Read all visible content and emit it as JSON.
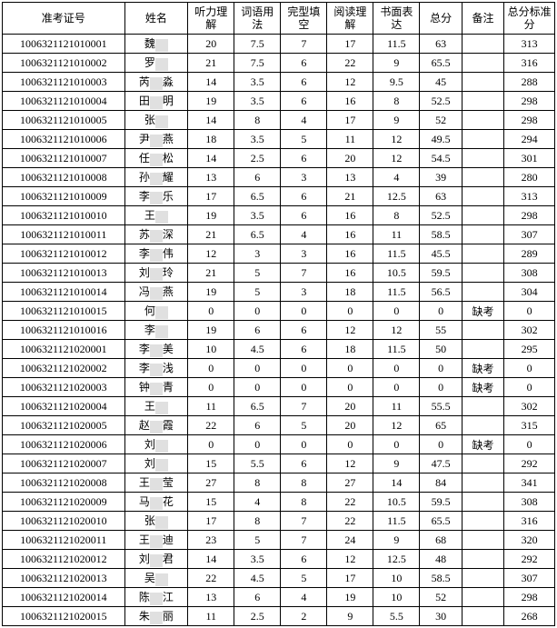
{
  "headers": {
    "id": "准考证号",
    "name": "姓名",
    "s1": "听力理解",
    "s2": "词语用法",
    "s3": "完型填空",
    "s4": "阅读理解",
    "s5": "书面表达",
    "total": "总分",
    "note": "备注",
    "std": "总分标准分"
  },
  "rows": [
    {
      "id": "1006321121010001",
      "surname": "魏",
      "hidden": 1,
      "s1": "20",
      "s2": "7.5",
      "s3": "7",
      "s4": "17",
      "s5": "11.5",
      "total": "63",
      "note": "",
      "std": "313"
    },
    {
      "id": "1006321121010002",
      "surname": "罗",
      "hidden": 1,
      "s1": "21",
      "s2": "7.5",
      "s3": "6",
      "s4": "22",
      "s5": "9",
      "total": "65.5",
      "note": "",
      "std": "316"
    },
    {
      "id": "1006321121010003",
      "surname": "芮",
      "tail": "淼",
      "hidden": 1,
      "s1": "14",
      "s2": "3.5",
      "s3": "6",
      "s4": "12",
      "s5": "9.5",
      "total": "45",
      "note": "",
      "std": "288"
    },
    {
      "id": "1006321121010004",
      "surname": "田",
      "tail": "明",
      "hidden": 1,
      "s1": "19",
      "s2": "3.5",
      "s3": "6",
      "s4": "16",
      "s5": "8",
      "total": "52.5",
      "note": "",
      "std": "298"
    },
    {
      "id": "1006321121010005",
      "surname": "张",
      "hidden": 1,
      "s1": "14",
      "s2": "8",
      "s3": "4",
      "s4": "17",
      "s5": "9",
      "total": "52",
      "note": "",
      "std": "298"
    },
    {
      "id": "1006321121010006",
      "surname": "尹",
      "tail": "燕",
      "hidden": 1,
      "s1": "18",
      "s2": "3.5",
      "s3": "5",
      "s4": "11",
      "s5": "12",
      "total": "49.5",
      "note": "",
      "std": "294"
    },
    {
      "id": "1006321121010007",
      "surname": "任",
      "tail": "松",
      "hidden": 1,
      "s1": "14",
      "s2": "2.5",
      "s3": "6",
      "s4": "20",
      "s5": "12",
      "total": "54.5",
      "note": "",
      "std": "301"
    },
    {
      "id": "1006321121010008",
      "surname": "孙",
      "tail": "耀",
      "hidden": 1,
      "s1": "13",
      "s2": "6",
      "s3": "3",
      "s4": "13",
      "s5": "4",
      "total": "39",
      "note": "",
      "std": "280"
    },
    {
      "id": "1006321121010009",
      "surname": "李",
      "tail": "乐",
      "hidden": 1,
      "s1": "17",
      "s2": "6.5",
      "s3": "6",
      "s4": "21",
      "s5": "12.5",
      "total": "63",
      "note": "",
      "std": "313"
    },
    {
      "id": "1006321121010010",
      "surname": "王",
      "hidden": 1,
      "s1": "19",
      "s2": "3.5",
      "s3": "6",
      "s4": "16",
      "s5": "8",
      "total": "52.5",
      "note": "",
      "std": "298"
    },
    {
      "id": "1006321121010011",
      "surname": "苏",
      "tail": "深",
      "hidden": 1,
      "s1": "21",
      "s2": "6.5",
      "s3": "4",
      "s4": "16",
      "s5": "11",
      "total": "58.5",
      "note": "",
      "std": "307"
    },
    {
      "id": "1006321121010012",
      "surname": "李",
      "tail": "伟",
      "hidden": 1,
      "s1": "12",
      "s2": "3",
      "s3": "3",
      "s4": "16",
      "s5": "11.5",
      "total": "45.5",
      "note": "",
      "std": "289"
    },
    {
      "id": "1006321121010013",
      "surname": "刘",
      "tail": "玲",
      "hidden": 1,
      "s1": "21",
      "s2": "5",
      "s3": "7",
      "s4": "16",
      "s5": "10.5",
      "total": "59.5",
      "note": "",
      "std": "308"
    },
    {
      "id": "1006321121010014",
      "surname": "冯",
      "tail": "燕",
      "hidden": 1,
      "s1": "19",
      "s2": "5",
      "s3": "3",
      "s4": "18",
      "s5": "11.5",
      "total": "56.5",
      "note": "",
      "std": "304"
    },
    {
      "id": "1006321121010015",
      "surname": "何",
      "hidden": 1,
      "s1": "0",
      "s2": "0",
      "s3": "0",
      "s4": "0",
      "s5": "0",
      "total": "0",
      "note": "缺考",
      "std": "0"
    },
    {
      "id": "1006321121010016",
      "surname": "李",
      "hidden": 1,
      "s1": "19",
      "s2": "6",
      "s3": "6",
      "s4": "12",
      "s5": "12",
      "total": "55",
      "note": "",
      "std": "302"
    },
    {
      "id": "1006321121020001",
      "surname": "李",
      "tail": "美",
      "hidden": 1,
      "s1": "10",
      "s2": "4.5",
      "s3": "6",
      "s4": "18",
      "s5": "11.5",
      "total": "50",
      "note": "",
      "std": "295"
    },
    {
      "id": "1006321121020002",
      "surname": "李",
      "tail": "浅",
      "hidden": 1,
      "s1": "0",
      "s2": "0",
      "s3": "0",
      "s4": "0",
      "s5": "0",
      "total": "0",
      "note": "缺考",
      "std": "0"
    },
    {
      "id": "1006321121020003",
      "surname": "钟",
      "tail": "青",
      "hidden": 1,
      "s1": "0",
      "s2": "0",
      "s3": "0",
      "s4": "0",
      "s5": "0",
      "total": "0",
      "note": "缺考",
      "std": "0"
    },
    {
      "id": "1006321121020004",
      "surname": "王",
      "hidden": 1,
      "s1": "11",
      "s2": "6.5",
      "s3": "7",
      "s4": "20",
      "s5": "11",
      "total": "55.5",
      "note": "",
      "std": "302"
    },
    {
      "id": "1006321121020005",
      "surname": "赵",
      "tail": "霞",
      "hidden": 1,
      "s1": "22",
      "s2": "6",
      "s3": "5",
      "s4": "20",
      "s5": "12",
      "total": "65",
      "note": "",
      "std": "315"
    },
    {
      "id": "1006321121020006",
      "surname": "刘",
      "hidden": 1,
      "s1": "0",
      "s2": "0",
      "s3": "0",
      "s4": "0",
      "s5": "0",
      "total": "0",
      "note": "缺考",
      "std": "0"
    },
    {
      "id": "1006321121020007",
      "surname": "刘",
      "hidden": 1,
      "s1": "15",
      "s2": "5.5",
      "s3": "6",
      "s4": "12",
      "s5": "9",
      "total": "47.5",
      "note": "",
      "std": "292"
    },
    {
      "id": "1006321121020008",
      "surname": "王",
      "tail": "莹",
      "hidden": 1,
      "s1": "27",
      "s2": "8",
      "s3": "8",
      "s4": "27",
      "s5": "14",
      "total": "84",
      "note": "",
      "std": "341"
    },
    {
      "id": "1006321121020009",
      "surname": "马",
      "tail": "花",
      "hidden": 1,
      "s1": "15",
      "s2": "4",
      "s3": "8",
      "s4": "22",
      "s5": "10.5",
      "total": "59.5",
      "note": "",
      "std": "308"
    },
    {
      "id": "1006321121020010",
      "surname": "张",
      "hidden": 1,
      "s1": "17",
      "s2": "8",
      "s3": "7",
      "s4": "22",
      "s5": "11.5",
      "total": "65.5",
      "note": "",
      "std": "316"
    },
    {
      "id": "1006321121020011",
      "surname": "王",
      "tail": "迪",
      "hidden": 1,
      "s1": "23",
      "s2": "5",
      "s3": "7",
      "s4": "24",
      "s5": "9",
      "total": "68",
      "note": "",
      "std": "320"
    },
    {
      "id": "1006321121020012",
      "surname": "刘",
      "tail": "君",
      "hidden": 1,
      "s1": "14",
      "s2": "3.5",
      "s3": "6",
      "s4": "12",
      "s5": "12.5",
      "total": "48",
      "note": "",
      "std": "292"
    },
    {
      "id": "1006321121020013",
      "surname": "吴",
      "hidden": 1,
      "s1": "22",
      "s2": "4.5",
      "s3": "5",
      "s4": "17",
      "s5": "10",
      "total": "58.5",
      "note": "",
      "std": "307"
    },
    {
      "id": "1006321121020014",
      "surname": "陈",
      "tail": "江",
      "hidden": 1,
      "s1": "13",
      "s2": "6",
      "s3": "4",
      "s4": "19",
      "s5": "10",
      "total": "52",
      "note": "",
      "std": "298"
    },
    {
      "id": "1006321121020015",
      "surname": "朱",
      "tail": "丽",
      "hidden": 1,
      "s1": "11",
      "s2": "2.5",
      "s3": "2",
      "s4": "9",
      "s5": "5.5",
      "total": "30",
      "note": "",
      "std": "268"
    }
  ],
  "style": {
    "font_family": "SimSun",
    "font_size_pt": 9,
    "border_color": "#000000",
    "background": "#ffffff",
    "mask_color": "#e0e0e0"
  }
}
